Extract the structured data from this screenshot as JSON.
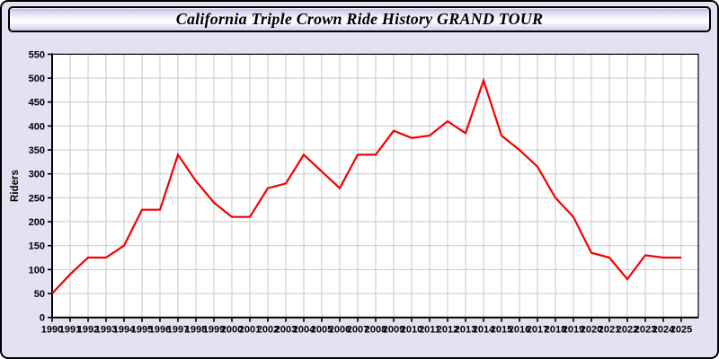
{
  "header": {
    "title": "California Triple Crown Ride History GRAND TOUR"
  },
  "chart_data": {
    "type": "line",
    "title": "California Triple Crown Ride History GRAND TOUR",
    "xlabel": "",
    "ylabel": "Riders",
    "ylim": [
      0,
      550
    ],
    "ytick_step": 50,
    "grid": true,
    "legend": "none",
    "series_name": "Riders",
    "x": [
      1990,
      1991,
      1992,
      1993,
      1994,
      1995,
      1996,
      1997,
      1998,
      1999,
      2000,
      2001,
      2002,
      2003,
      2004,
      2005,
      2006,
      2007,
      2008,
      2009,
      2010,
      2011,
      2012,
      2013,
      2014,
      2015,
      2016,
      2017,
      2018,
      2019,
      2020,
      2021,
      2022,
      2023,
      2024,
      2025
    ],
    "values": [
      50,
      90,
      125,
      125,
      150,
      225,
      225,
      340,
      285,
      240,
      210,
      210,
      270,
      280,
      340,
      305,
      270,
      340,
      340,
      390,
      375,
      380,
      410,
      385,
      495,
      380,
      350,
      315,
      250,
      210,
      135,
      125,
      80,
      130,
      125,
      125
    ],
    "colors": {
      "line": "#f40000",
      "plot_background": "#ffffff",
      "page_background": "#e2e2f3",
      "gridline": "#c9c9c9",
      "axis": "#000000",
      "text": "#000000"
    }
  }
}
